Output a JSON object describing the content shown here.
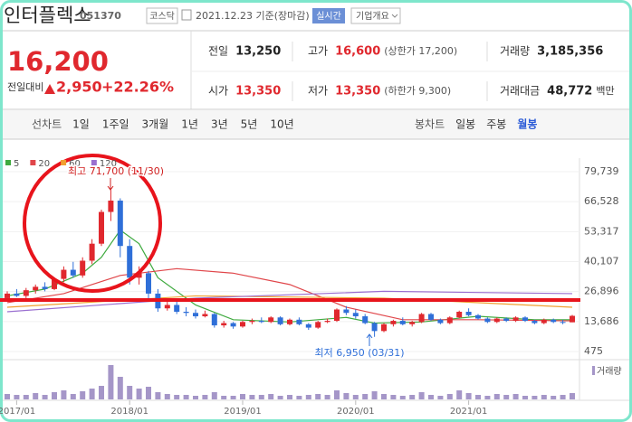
{
  "header": {
    "name": "인터플렉스",
    "code": "051370",
    "market": "코스닥",
    "date": "2021.12.23 기준(장마감)",
    "realtime": "실시간",
    "overview": "기업개요"
  },
  "quote": {
    "price": "16,200",
    "change_label": "전일대비",
    "change": "2,950",
    "change_pct": "+22.26%",
    "fields": [
      {
        "label": "전일",
        "value": "13,250"
      },
      {
        "label": "고가",
        "value": "16,600",
        "extra": "(상한가 17,200)"
      },
      {
        "label": "거래량",
        "value": "3,185,356"
      },
      {
        "label": "시가",
        "value": "13,350"
      },
      {
        "label": "저가",
        "value": "13,350",
        "extra": "(하한가 9,300)"
      },
      {
        "label": "거래대금",
        "value": "48,772",
        "unit": "백만"
      }
    ]
  },
  "tabs": {
    "line_label": "선차트",
    "line_periods": [
      "1일",
      "1주일",
      "3개월",
      "1년",
      "3년",
      "5년",
      "10년"
    ],
    "candle_label": "봉차트",
    "candle_periods": [
      "일봉",
      "주봉",
      "월봉"
    ],
    "selected": 2
  },
  "chart_data": {
    "type": "candlestick",
    "categories": [
      null,
      "2017/01",
      null,
      null,
      null,
      null,
      null,
      null,
      null,
      null,
      null,
      null,
      null,
      "2018/01",
      null,
      null,
      null,
      null,
      null,
      null,
      null,
      null,
      null,
      null,
      null,
      "2019/01",
      null,
      null,
      null,
      null,
      null,
      null,
      null,
      null,
      null,
      null,
      null,
      "2020/01",
      null,
      null,
      null,
      null,
      null,
      null,
      null,
      null,
      null,
      null,
      null,
      "2021/01",
      null,
      null,
      null,
      null,
      null,
      null,
      null,
      null,
      null,
      null,
      null
    ],
    "ohlc": [
      [
        24000,
        27000,
        23000,
        26000
      ],
      [
        26000,
        28000,
        24500,
        25000
      ],
      [
        25000,
        28500,
        24000,
        27500
      ],
      [
        27500,
        30000,
        26000,
        29000
      ],
      [
        29000,
        31000,
        27000,
        28000
      ],
      [
        28000,
        33000,
        27500,
        32500
      ],
      [
        32500,
        38000,
        31000,
        36500
      ],
      [
        36500,
        40000,
        33000,
        34000
      ],
      [
        34000,
        42000,
        33000,
        40500
      ],
      [
        40500,
        50000,
        39000,
        48000
      ],
      [
        48000,
        63000,
        47000,
        62000
      ],
      [
        62000,
        71700,
        58000,
        67000
      ],
      [
        67000,
        68000,
        42000,
        47000
      ],
      [
        47000,
        50000,
        30000,
        33000
      ],
      [
        33000,
        38000,
        30000,
        35000
      ],
      [
        35000,
        36000,
        24000,
        26000
      ],
      [
        26000,
        28000,
        18000,
        19500
      ],
      [
        19500,
        23000,
        18500,
        21000
      ],
      [
        21000,
        22500,
        17000,
        18000
      ],
      [
        18000,
        20000,
        16000,
        17500
      ],
      [
        17500,
        19000,
        15000,
        16000
      ],
      [
        16000,
        18500,
        15500,
        17000
      ],
      [
        17000,
        17500,
        11000,
        12000
      ],
      [
        12000,
        14000,
        11000,
        13000
      ],
      [
        13000,
        13500,
        10500,
        11500
      ],
      [
        11500,
        14000,
        11000,
        13500
      ],
      [
        13500,
        15000,
        12500,
        14000
      ],
      [
        14000,
        15500,
        13000,
        13500
      ],
      [
        13500,
        16000,
        13000,
        15500
      ],
      [
        15500,
        16000,
        12000,
        12500
      ],
      [
        12500,
        15000,
        12000,
        14500
      ],
      [
        14500,
        15500,
        12000,
        12500
      ],
      [
        12500,
        13000,
        10000,
        11000
      ],
      [
        11000,
        14000,
        10500,
        13500
      ],
      [
        13500,
        15000,
        13000,
        14000
      ],
      [
        14000,
        19500,
        13500,
        19000
      ],
      [
        19000,
        20500,
        16500,
        17500
      ],
      [
        17500,
        19000,
        15000,
        16000
      ],
      [
        16000,
        17000,
        12500,
        13000
      ],
      [
        13000,
        13500,
        6950,
        9500
      ],
      [
        9500,
        13000,
        9000,
        12500
      ],
      [
        12500,
        14500,
        11500,
        14000
      ],
      [
        14000,
        15500,
        12000,
        12500
      ],
      [
        12500,
        14000,
        11500,
        13500
      ],
      [
        13500,
        17500,
        13000,
        17000
      ],
      [
        17000,
        17500,
        14000,
        14500
      ],
      [
        14500,
        15000,
        12500,
        13000
      ],
      [
        13000,
        16000,
        12500,
        15500
      ],
      [
        15500,
        18500,
        15000,
        18000
      ],
      [
        18000,
        19500,
        16000,
        16500
      ],
      [
        16500,
        17000,
        14500,
        15000
      ],
      [
        15000,
        15500,
        13000,
        13500
      ],
      [
        13500,
        15500,
        13000,
        15000
      ],
      [
        15000,
        15500,
        13500,
        14000
      ],
      [
        14000,
        16000,
        13500,
        15500
      ],
      [
        15500,
        16000,
        13500,
        14000
      ],
      [
        14000,
        14500,
        12500,
        13000
      ],
      [
        13000,
        15000,
        12500,
        14500
      ],
      [
        14500,
        15000,
        13000,
        13500
      ],
      [
        13500,
        14500,
        12500,
        13250
      ],
      [
        13350,
        16600,
        13350,
        16200
      ]
    ],
    "up_color": "#e0282e",
    "down_color": "#2f6fd8",
    "moving_averages": [
      {
        "name": "5",
        "color": "#3faa3f",
        "x": [
          0,
          4,
          8,
          10,
          12,
          14,
          16,
          20,
          24,
          30,
          36,
          39,
          44,
          50,
          56,
          60
        ],
        "values": [
          25000,
          28000,
          35000,
          42000,
          54000,
          48000,
          33000,
          21000,
          14500,
          13500,
          15500,
          13000,
          13500,
          16000,
          14500,
          14500
        ]
      },
      {
        "name": "20",
        "color": "#e0464a",
        "x": [
          0,
          6,
          12,
          18,
          24,
          30,
          36,
          42,
          50,
          60
        ],
        "values": [
          22000,
          26000,
          34000,
          37000,
          35000,
          30000,
          20000,
          14500,
          14500,
          14000
        ]
      },
      {
        "name": "60",
        "color": "#f0a030",
        "x": [
          0,
          20,
          40,
          60
        ],
        "values": [
          20000,
          25000,
          24000,
          20000
        ]
      },
      {
        "name": "120",
        "color": "#9a6fd0",
        "x": [
          0,
          20,
          40,
          60
        ],
        "values": [
          18000,
          24000,
          27000,
          26000
        ]
      }
    ],
    "ylim": [
      475,
      79739
    ],
    "yticks": [
      {
        "value": 79739,
        "label": "79,739"
      },
      {
        "value": 66528,
        "label": "66,528"
      },
      {
        "value": 53317,
        "label": "53,317"
      },
      {
        "value": 40107,
        "label": "40,107"
      },
      {
        "value": 26896,
        "label": "26,896"
      },
      {
        "value": 13686,
        "label": "13,686"
      },
      475
    ],
    "annotations": [
      "최고 71,700 (11/30)",
      "최저 6,950 (03/31)"
    ],
    "volume_label": "거래량",
    "volume": [
      6000000,
      5000000,
      5000000,
      7000000,
      5000000,
      8000000,
      10000000,
      6000000,
      9000000,
      12000000,
      15000000,
      38000000,
      25000000,
      15000000,
      12000000,
      14000000,
      8000000,
      6000000,
      5000000,
      5000000,
      4000000,
      5000000,
      8000000,
      4000000,
      4000000,
      6000000,
      5000000,
      5000000,
      6000000,
      4000000,
      5000000,
      4000000,
      5000000,
      6000000,
      5000000,
      10000000,
      7000000,
      5000000,
      6000000,
      9000000,
      6000000,
      5000000,
      4000000,
      5000000,
      8000000,
      5000000,
      4000000,
      6000000,
      10000000,
      7000000,
      5000000,
      4000000,
      6000000,
      5000000,
      6000000,
      4000000,
      4000000,
      5000000,
      4000000,
      5000000,
      7000000
    ],
    "volume_ylim": [
      0,
      40000000
    ],
    "volume_color": "#a596c8"
  }
}
